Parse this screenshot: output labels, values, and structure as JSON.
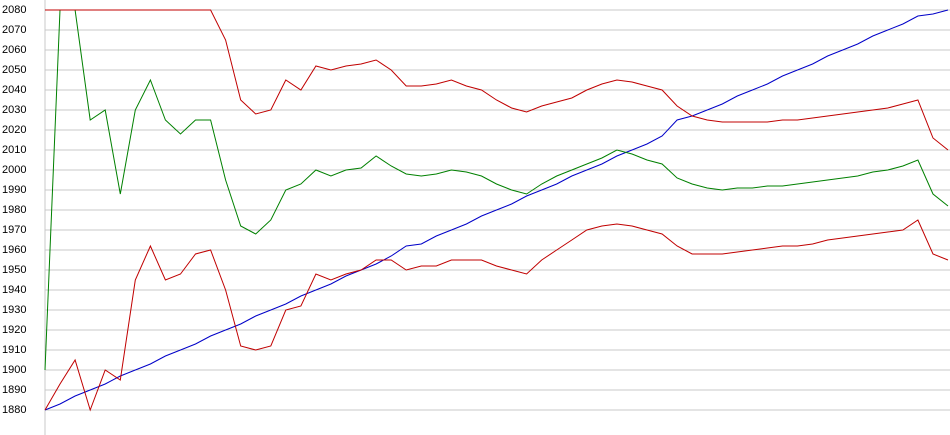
{
  "chart_data": {
    "type": "line",
    "ylim": [
      1880,
      2080
    ],
    "yticks": [
      1880,
      1890,
      1900,
      1910,
      1920,
      1930,
      1940,
      1950,
      1960,
      1970,
      1980,
      1990,
      2000,
      2010,
      2020,
      2030,
      2040,
      2050,
      2060,
      2070,
      2080
    ],
    "grid": true,
    "series": [
      {
        "color": "#0000c8",
        "values": [
          1880,
          1883,
          1887,
          1890,
          1893,
          1897,
          1900,
          1903,
          1907,
          1910,
          1913,
          1917,
          1920,
          1923,
          1927,
          1930,
          1933,
          1937,
          1940,
          1943,
          1947,
          1950,
          1953,
          1957,
          1962,
          1963,
          1967,
          1970,
          1973,
          1977,
          1980,
          1983,
          1987,
          1990,
          1993,
          1997,
          2000,
          2003,
          2007,
          2010,
          2013,
          2017,
          2025,
          2027,
          2030,
          2033,
          2037,
          2040,
          2043,
          2047,
          2050,
          2053,
          2057,
          2060,
          2063,
          2067,
          2070,
          2073,
          2077,
          2078,
          2080
        ]
      },
      {
        "color": "#008000",
        "values": [
          1900,
          2080,
          2080,
          2025,
          2030,
          1988,
          2030,
          2045,
          2025,
          2018,
          2025,
          2025,
          1995,
          1972,
          1968,
          1975,
          1990,
          1993,
          2000,
          1997,
          2000,
          2001,
          2007,
          2002,
          1998,
          1997,
          1998,
          2000,
          1999,
          1997,
          1993,
          1990,
          1988,
          1993,
          1997,
          2000,
          2003,
          2006,
          2010,
          2008,
          2005,
          2003,
          1996,
          1993,
          1991,
          1990,
          1991,
          1991,
          1992,
          1992,
          1993,
          1994,
          1995,
          1996,
          1997,
          1999,
          2000,
          2002,
          2005,
          1988,
          1982
        ]
      },
      {
        "color": "#c00000",
        "values": [
          2080,
          2080,
          2080,
          2080,
          2080,
          2080,
          2080,
          2080,
          2080,
          2080,
          2080,
          2080,
          2065,
          2035,
          2028,
          2030,
          2045,
          2040,
          2052,
          2050,
          2052,
          2053,
          2055,
          2050,
          2042,
          2042,
          2043,
          2045,
          2042,
          2040,
          2035,
          2031,
          2029,
          2032,
          2034,
          2036,
          2040,
          2043,
          2045,
          2044,
          2042,
          2040,
          2032,
          2027,
          2025,
          2024,
          2024,
          2024,
          2024,
          2025,
          2025,
          2026,
          2027,
          2028,
          2029,
          2030,
          2031,
          2033,
          2035,
          2016,
          2010
        ]
      },
      {
        "color": "#c00000",
        "values": [
          1880,
          1893,
          1905,
          1880,
          1900,
          1895,
          1945,
          1962,
          1945,
          1948,
          1958,
          1960,
          1940,
          1912,
          1910,
          1912,
          1930,
          1932,
          1948,
          1945,
          1948,
          1950,
          1955,
          1955,
          1950,
          1952,
          1952,
          1955,
          1955,
          1955,
          1952,
          1950,
          1948,
          1955,
          1960,
          1965,
          1970,
          1972,
          1973,
          1972,
          1970,
          1968,
          1962,
          1958,
          1958,
          1958,
          1959,
          1960,
          1961,
          1962,
          1962,
          1963,
          1965,
          1966,
          1967,
          1968,
          1969,
          1970,
          1975,
          1958,
          1955
        ]
      }
    ]
  }
}
